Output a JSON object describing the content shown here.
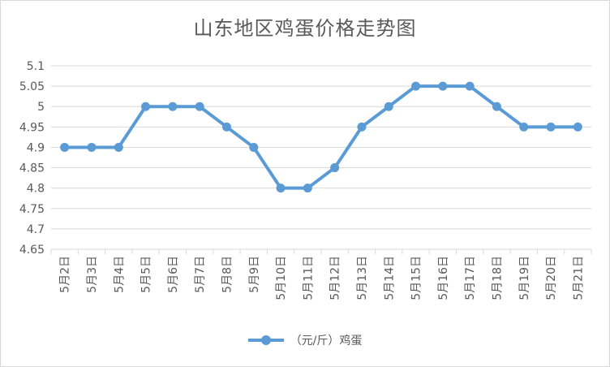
{
  "chart_data": {
    "type": "line",
    "title": "山东地区鸡蛋价格走势图",
    "categories": [
      "5月2日",
      "5月3日",
      "5月4日",
      "5月5日",
      "5月6日",
      "5月7日",
      "5月8日",
      "5月9日",
      "5月10日",
      "5月11日",
      "5月12日",
      "5月13日",
      "5月14日",
      "5月15日",
      "5月16日",
      "5月17日",
      "5月18日",
      "5月19日",
      "5月20日",
      "5月21日"
    ],
    "series": [
      {
        "name": "（元/斤）鸡蛋",
        "values": [
          4.9,
          4.9,
          4.9,
          5.0,
          5.0,
          5.0,
          4.95,
          4.9,
          4.8,
          4.8,
          4.85,
          4.95,
          5.0,
          5.05,
          5.05,
          5.05,
          5.0,
          4.95,
          4.95,
          4.95
        ]
      }
    ],
    "ylim": [
      4.65,
      5.1
    ],
    "yticks": [
      "5.1",
      "5.05",
      "5",
      "4.95",
      "4.9",
      "4.85",
      "4.8",
      "4.75",
      "4.7",
      "4.65"
    ],
    "xlabel": "",
    "ylabel": "",
    "grid": true,
    "legend": "bottom",
    "colors": {
      "series": "#5b9bd5",
      "grid": "#d9d9d9",
      "text": "#595959"
    }
  }
}
